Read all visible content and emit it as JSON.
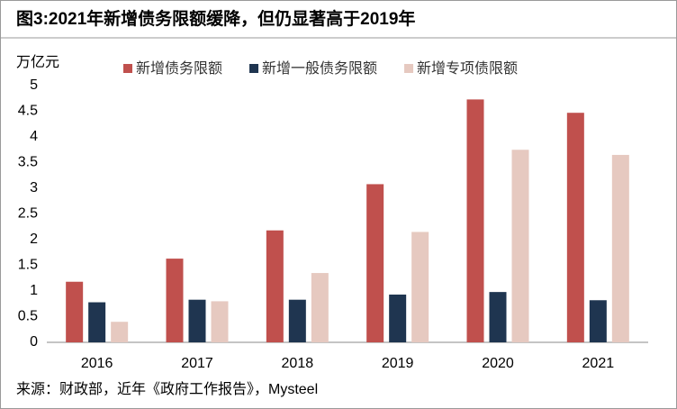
{
  "chart_data": {
    "type": "bar",
    "title": "图3:2021年新增债务限额缓降，但仍显著高于2019年",
    "y_label": "万亿元",
    "source": "来源：财政部，近年《政府工作报告》，Mysteel",
    "categories": [
      "2016",
      "2017",
      "2018",
      "2019",
      "2020",
      "2021"
    ],
    "series": [
      {
        "name": "新增债务限额",
        "color": "#c0504d",
        "values": [
          1.18,
          1.63,
          2.18,
          3.08,
          4.73,
          4.47
        ]
      },
      {
        "name": "新增一般债务限额",
        "color": "#1f3550",
        "values": [
          0.78,
          0.83,
          0.83,
          0.93,
          0.98,
          0.82
        ]
      },
      {
        "name": "新增专项债限额",
        "color": "#e6c9c0",
        "values": [
          0.4,
          0.8,
          1.35,
          2.15,
          3.75,
          3.65
        ]
      }
    ],
    "ylim": [
      0,
      5
    ],
    "yticks": [
      0,
      0.5,
      1,
      1.5,
      2,
      2.5,
      3,
      3.5,
      4,
      4.5,
      5
    ],
    "grid": false
  }
}
